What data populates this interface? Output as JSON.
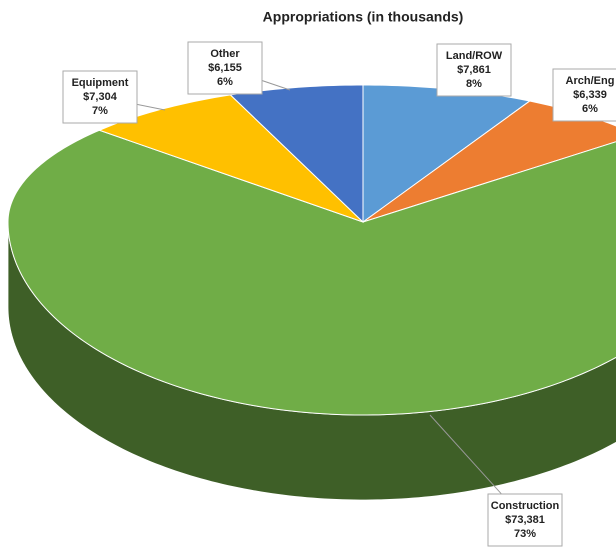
{
  "chart_data": {
    "type": "pie",
    "title": "Appropriations (in thousands)",
    "categories": [
      "Land/ROW",
      "Arch/Eng",
      "Construction",
      "Equipment",
      "Other"
    ],
    "values": [
      7861,
      6339,
      73381,
      7304,
      6155
    ],
    "value_labels": [
      "$7,861",
      "$6,339",
      "$73,381",
      "$7,304",
      "$6,155"
    ],
    "percents": [
      8,
      6,
      73,
      7,
      6
    ],
    "percent_labels": [
      "8%",
      "6%",
      "73%",
      "7%",
      "6%"
    ],
    "colors": [
      "#5b9bd5",
      "#ed7d31",
      "#70ad47",
      "#ffc000",
      "#4472c4"
    ]
  }
}
